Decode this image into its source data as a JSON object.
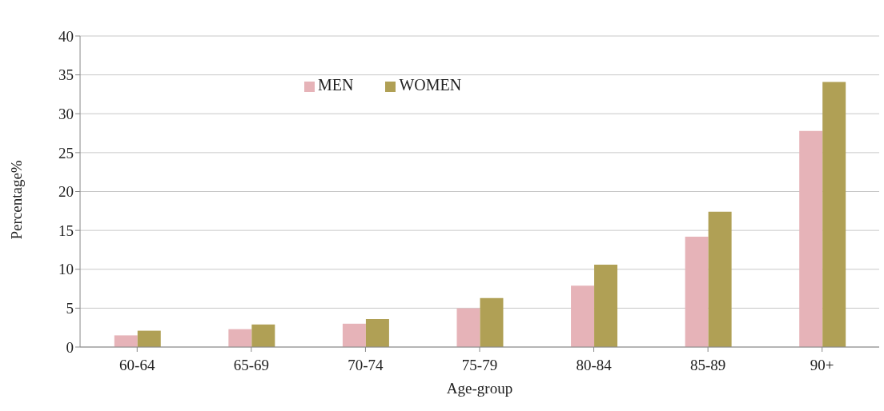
{
  "chart_data": {
    "type": "bar",
    "xlabel": "Age-group",
    "ylabel": "Percentage%",
    "categories": [
      "60-64",
      "65-69",
      "70-74",
      "75-79",
      "80-84",
      "85-89",
      "90+"
    ],
    "series": [
      {
        "name": "MEN",
        "color": "#e6b3b8",
        "values": [
          1.5,
          2.3,
          3.0,
          5.0,
          7.9,
          14.2,
          27.8
        ]
      },
      {
        "name": "WOMEN",
        "color": "#b0a055",
        "values": [
          2.1,
          2.9,
          3.6,
          6.3,
          10.6,
          17.4,
          34.1
        ]
      }
    ],
    "ylim": [
      0,
      40
    ],
    "yticks": [
      0,
      5,
      10,
      15,
      20,
      25,
      30,
      35,
      40
    ],
    "grid": "y",
    "legend": "top"
  }
}
